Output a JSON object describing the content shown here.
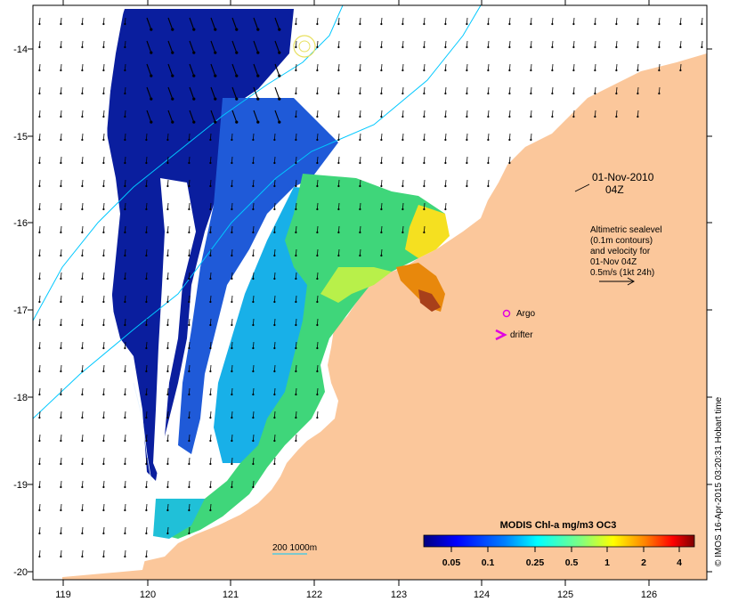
{
  "map": {
    "date_line1": "01-Nov-2010",
    "date_line2": "04Z",
    "altimetry_note": [
      "Altimetric sealevel",
      "(0.1m contours)",
      "and velocity for",
      "01-Nov 04Z",
      "0.5m/s (1kt 24h)"
    ],
    "argo_label": "Argo",
    "drifter_label": "drifter",
    "isobath_label": "200  1000m",
    "credit": "© IMOS 16-Apr-2015 03:20:31 Hobart time"
  },
  "axes": {
    "lon_ticks": [
      "119",
      "120",
      "121",
      "122",
      "123",
      "124",
      "125",
      "126"
    ],
    "lat_ticks": [
      "-14",
      "-15",
      "-16",
      "-17",
      "-18",
      "-19",
      "-20"
    ]
  },
  "colorbar": {
    "title": "MODIS Chl-a mg/m3 OC3",
    "tick_labels": [
      "0.05",
      "0.1",
      "0.25",
      "0.5",
      "1",
      "2",
      "4"
    ],
    "colors": [
      "#00007f",
      "#0000ff",
      "#0080ff",
      "#00ffff",
      "#80ff80",
      "#ffff00",
      "#ff8000",
      "#ff0000",
      "#7f0000"
    ]
  },
  "colors": {
    "land": "#fbc79b",
    "cloud": "#ffffff",
    "isobath": "#00c8ff",
    "argo_marker": "#e000e0",
    "drifter_marker": "#e000e0"
  }
}
